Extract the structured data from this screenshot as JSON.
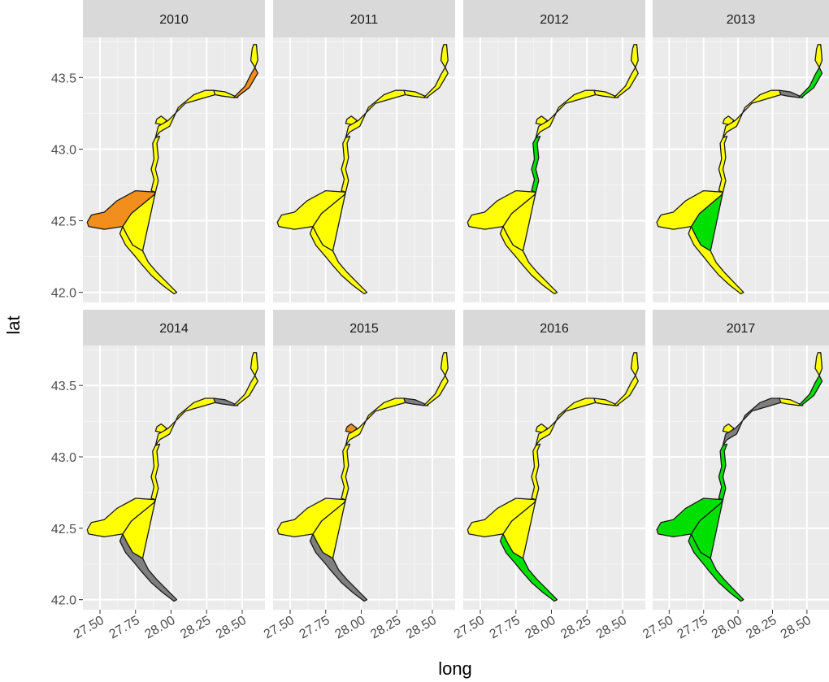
{
  "figure": {
    "xlabel": "long",
    "ylabel": "lat"
  },
  "colors": {
    "panel_bg": "#EBEBEB",
    "strip_bg": "#D9D9D9",
    "grid_major": "#FFFFFF",
    "grid_minor": "#F5F5F5",
    "outline": "#1A1A1A",
    "yellow": "#FFFF00",
    "orange": "#F28E1C",
    "green": "#00E000",
    "grey": "#7F7F7F"
  },
  "chart_data": {
    "type": "faceted-choropleth",
    "facet_by": "year",
    "xlim": [
      27.38,
      28.66
    ],
    "ylim": [
      41.93,
      43.78
    ],
    "x_ticks": [
      "27.50",
      "27.75",
      "28.00",
      "28.25",
      "28.50"
    ],
    "y_ticks": [
      "42.0",
      "42.5",
      "43.0",
      "43.5"
    ],
    "facets": [
      {
        "year": "2010",
        "regions": {
          "north_cap": "yellow",
          "north_tip": "orange",
          "north_bend": "yellow",
          "upper_coast": "yellow",
          "spur": "yellow",
          "mid_coast": "yellow",
          "lagoon": "orange",
          "big_bay": "yellow",
          "south_coast": "yellow"
        }
      },
      {
        "year": "2011",
        "regions": {
          "north_cap": "yellow",
          "north_tip": "yellow",
          "north_bend": "yellow",
          "upper_coast": "yellow",
          "spur": "yellow",
          "mid_coast": "yellow",
          "lagoon": "yellow",
          "big_bay": "yellow",
          "south_coast": "yellow"
        }
      },
      {
        "year": "2012",
        "regions": {
          "north_cap": "yellow",
          "north_tip": "yellow",
          "north_bend": "yellow",
          "upper_coast": "yellow",
          "spur": "yellow",
          "mid_coast": "green",
          "lagoon": "yellow",
          "big_bay": "yellow",
          "south_coast": "yellow"
        }
      },
      {
        "year": "2013",
        "regions": {
          "north_cap": "yellow",
          "north_tip": "green",
          "north_bend": "grey",
          "upper_coast": "yellow",
          "spur": "yellow",
          "mid_coast": "yellow",
          "lagoon": "yellow",
          "big_bay": "green",
          "south_coast": "yellow"
        }
      },
      {
        "year": "2014",
        "regions": {
          "north_cap": "yellow",
          "north_tip": "yellow",
          "north_bend": "grey",
          "upper_coast": "yellow",
          "spur": "yellow",
          "mid_coast": "yellow",
          "lagoon": "yellow",
          "big_bay": "yellow",
          "south_coast": "grey"
        }
      },
      {
        "year": "2015",
        "regions": {
          "north_cap": "yellow",
          "north_tip": "yellow",
          "north_bend": "grey",
          "upper_coast": "yellow",
          "spur": "orange",
          "mid_coast": "yellow",
          "lagoon": "yellow",
          "big_bay": "yellow",
          "south_coast": "grey"
        }
      },
      {
        "year": "2016",
        "regions": {
          "north_cap": "yellow",
          "north_tip": "yellow",
          "north_bend": "yellow",
          "upper_coast": "yellow",
          "spur": "yellow",
          "mid_coast": "yellow",
          "lagoon": "yellow",
          "big_bay": "yellow",
          "south_coast": "green"
        }
      },
      {
        "year": "2017",
        "regions": {
          "north_cap": "yellow",
          "north_tip": "green",
          "north_bend": "yellow",
          "upper_coast": "grey",
          "spur": "yellow",
          "mid_coast": "green",
          "lagoon": "green",
          "big_bay": "green",
          "south_coast": "green"
        }
      }
    ]
  }
}
